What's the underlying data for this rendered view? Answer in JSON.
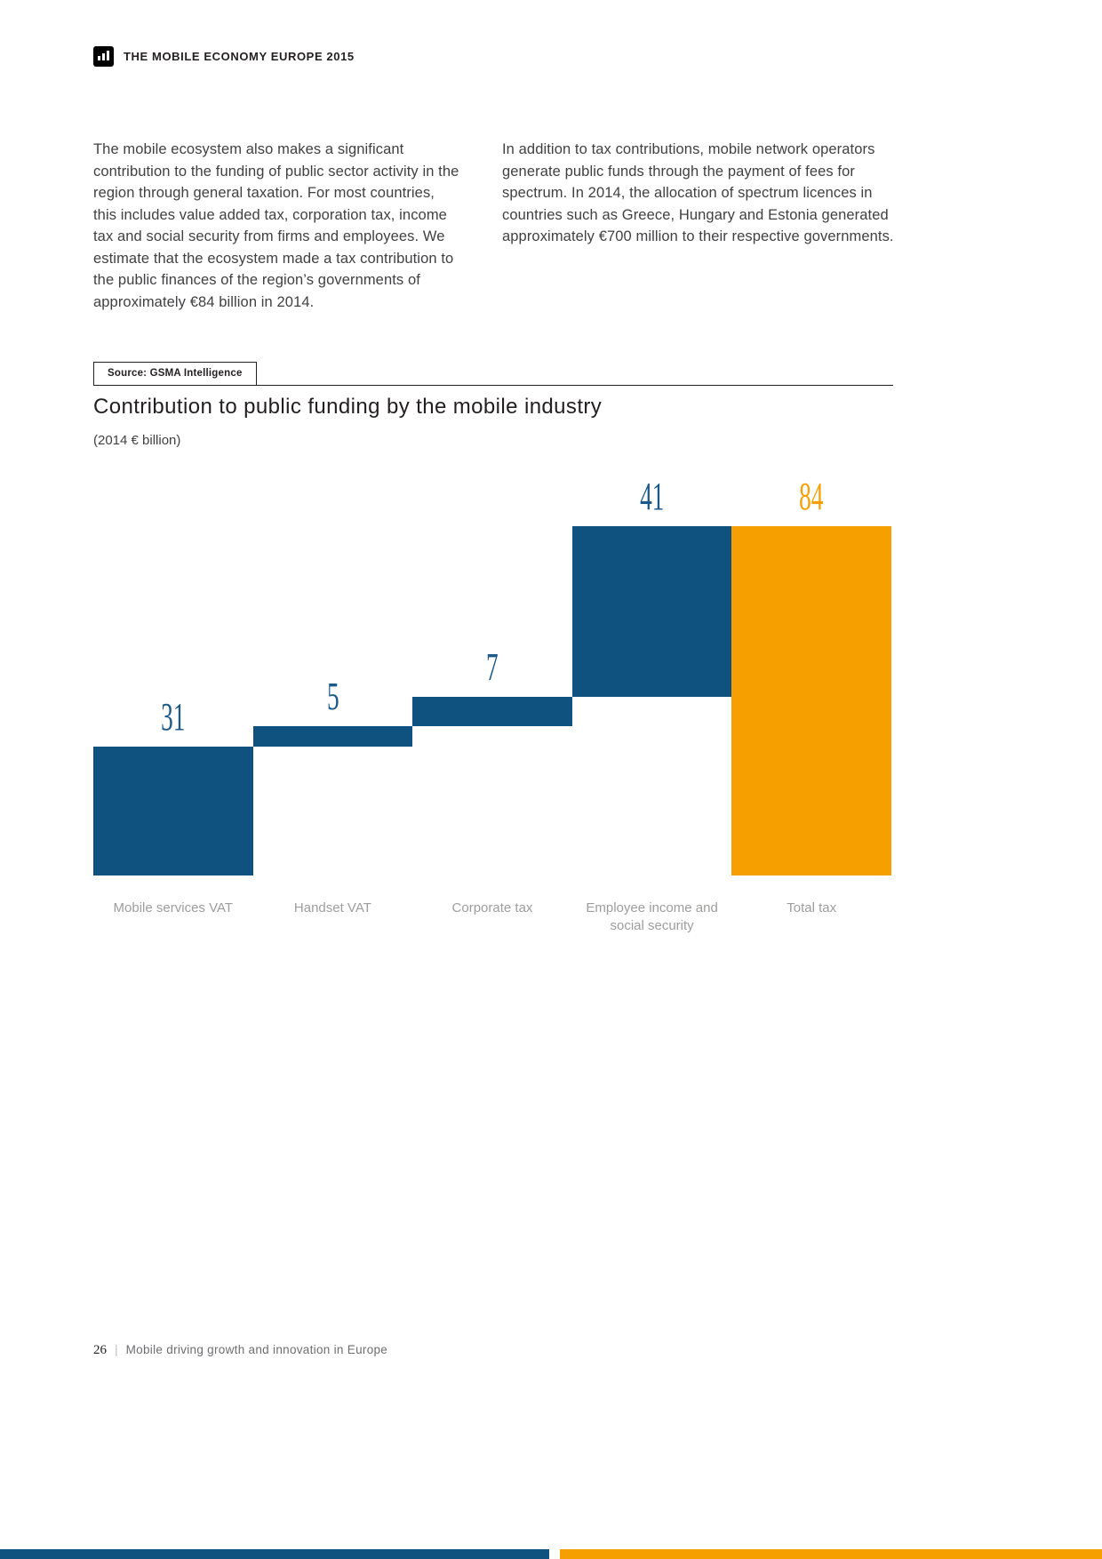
{
  "header": {
    "title": "THE MOBILE ECONOMY EUROPE 2015"
  },
  "intro": {
    "left": "The mobile ecosystem also makes a significant contribution to the funding of public sector activity in the region through general taxation. For most countries, this includes value added tax, corporation tax, income tax and social security from firms and employees. We estimate that the ecosystem made a tax contribution to the public finances of the region’s governments of approximately €84 billion in 2014.",
    "right": "In addition to tax contributions, mobile network operators generate public funds through the payment of fees for spectrum. In 2014, the allocation of spectrum licences in countries such as Greece, Hungary and Estonia generated approximately €700 million to their respective governments."
  },
  "source_label": "Source: GSMA Intelligence",
  "chart": {
    "title": "Contribution to public funding by the mobile industry",
    "subtitle": "(2014 € billion)"
  },
  "chart_data": {
    "type": "bar",
    "subtype": "waterfall",
    "title": "Contribution to public funding by the mobile industry",
    "subtitle": "(2014 € billion)",
    "categories": [
      "Mobile services VAT",
      "Handset VAT",
      "Corporate tax",
      "Employee income and social security",
      "Total tax"
    ],
    "values": [
      31,
      5,
      7,
      41,
      84
    ],
    "starts": [
      0,
      31,
      36,
      43,
      0
    ],
    "colors": [
      "#10527F",
      "#10527F",
      "#10527F",
      "#10527F",
      "#F5A000"
    ],
    "label_colors": [
      "#1B5A8A",
      "#1B5A8A",
      "#1B5A8A",
      "#1B5A8A",
      "#F5A000"
    ],
    "ylim": [
      0,
      84
    ],
    "grid": false,
    "legend": false,
    "accent_blue": "#10527F",
    "accent_orange": "#F5A000"
  },
  "footer": {
    "page_number": "26",
    "separator": "|",
    "text": "Mobile driving growth and innovation in Europe"
  }
}
